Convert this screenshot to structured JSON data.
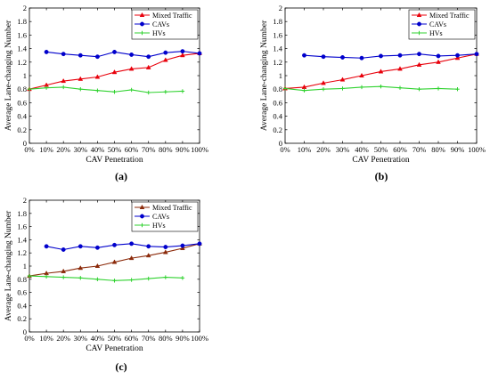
{
  "panels": [
    {
      "panel_label": "(a)",
      "chart_data": {
        "type": "line",
        "xlabel": "CAV Penetration",
        "ylabel": "Average Lane-changing Number",
        "categories": [
          "0%",
          "10%",
          "20%",
          "30%",
          "40%",
          "50%",
          "60%",
          "70%",
          "80%",
          "90%",
          "100%"
        ],
        "ylim": [
          0,
          2
        ],
        "yticks": [
          "0",
          "0.2",
          "0.4",
          "0.6",
          "0.8",
          "1",
          "1.2",
          "1.4",
          "1.6",
          "1.8",
          "2"
        ],
        "grid": false,
        "legend_position": "top-right",
        "series": [
          {
            "name": "Mixed Traffic",
            "color": "#e8000b",
            "marker": "triangle",
            "values": [
              0.8,
              0.86,
              0.92,
              0.95,
              0.98,
              1.05,
              1.1,
              1.12,
              1.23,
              1.3,
              1.33
            ]
          },
          {
            "name": "CAVs",
            "color": "#0000cc",
            "marker": "circle",
            "values": [
              null,
              1.35,
              1.32,
              1.3,
              1.28,
              1.35,
              1.31,
              1.28,
              1.34,
              1.36,
              1.33
            ]
          },
          {
            "name": "HVs",
            "color": "#2fd22f",
            "marker": "plus",
            "values": [
              0.8,
              0.82,
              0.83,
              0.8,
              0.78,
              0.76,
              0.79,
              0.75,
              0.76,
              0.77,
              null
            ]
          }
        ]
      }
    },
    {
      "panel_label": "(b)",
      "chart_data": {
        "type": "line",
        "xlabel": "CAV Penetration",
        "ylabel": "Average Lane-changing Number",
        "categories": [
          "0%",
          "10%",
          "20%",
          "30%",
          "40%",
          "50%",
          "60%",
          "70%",
          "80%",
          "90%",
          "100%"
        ],
        "ylim": [
          0,
          2
        ],
        "yticks": [
          "0",
          "0.2",
          "0.4",
          "0.6",
          "0.8",
          "1",
          "1.2",
          "1.4",
          "1.6",
          "1.8",
          "2"
        ],
        "grid": false,
        "legend_position": "top-right",
        "series": [
          {
            "name": "Mixed Traffic",
            "color": "#e8000b",
            "marker": "triangle",
            "values": [
              0.81,
              0.83,
              0.89,
              0.94,
              1.0,
              1.06,
              1.1,
              1.16,
              1.2,
              1.26,
              1.32
            ]
          },
          {
            "name": "CAVs",
            "color": "#0000cc",
            "marker": "circle",
            "values": [
              null,
              1.3,
              1.28,
              1.27,
              1.26,
              1.29,
              1.3,
              1.32,
              1.29,
              1.3,
              1.32
            ]
          },
          {
            "name": "HVs",
            "color": "#2fd22f",
            "marker": "plus",
            "values": [
              0.81,
              0.78,
              0.8,
              0.81,
              0.83,
              0.84,
              0.82,
              0.8,
              0.81,
              0.8,
              null
            ]
          }
        ]
      }
    },
    {
      "panel_label": "(c)",
      "chart_data": {
        "type": "line",
        "xlabel": "CAV Penetration",
        "ylabel": "Average Lane-changing Number",
        "categories": [
          "0%",
          "10%",
          "20%",
          "30%",
          "40%",
          "50%",
          "60%",
          "70%",
          "80%",
          "90%",
          "100%"
        ],
        "ylim": [
          0,
          2
        ],
        "yticks": [
          "0",
          "0.2",
          "0.4",
          "0.6",
          "0.8",
          "1",
          "1.2",
          "1.4",
          "1.6",
          "1.8",
          "2"
        ],
        "grid": false,
        "legend_position": "top-right",
        "series": [
          {
            "name": "Mixed Traffic",
            "color": "#8b2a0a",
            "marker": "triangle",
            "values": [
              0.85,
              0.89,
              0.92,
              0.97,
              1.0,
              1.06,
              1.12,
              1.16,
              1.21,
              1.27,
              1.34
            ]
          },
          {
            "name": "CAVs",
            "color": "#0000cc",
            "marker": "circle",
            "values": [
              null,
              1.3,
              1.25,
              1.3,
              1.28,
              1.32,
              1.34,
              1.3,
              1.29,
              1.31,
              1.34
            ]
          },
          {
            "name": "HVs",
            "color": "#2fd22f",
            "marker": "plus",
            "values": [
              0.85,
              0.84,
              0.83,
              0.82,
              0.8,
              0.78,
              0.79,
              0.81,
              0.83,
              0.82,
              null
            ]
          }
        ]
      }
    }
  ]
}
